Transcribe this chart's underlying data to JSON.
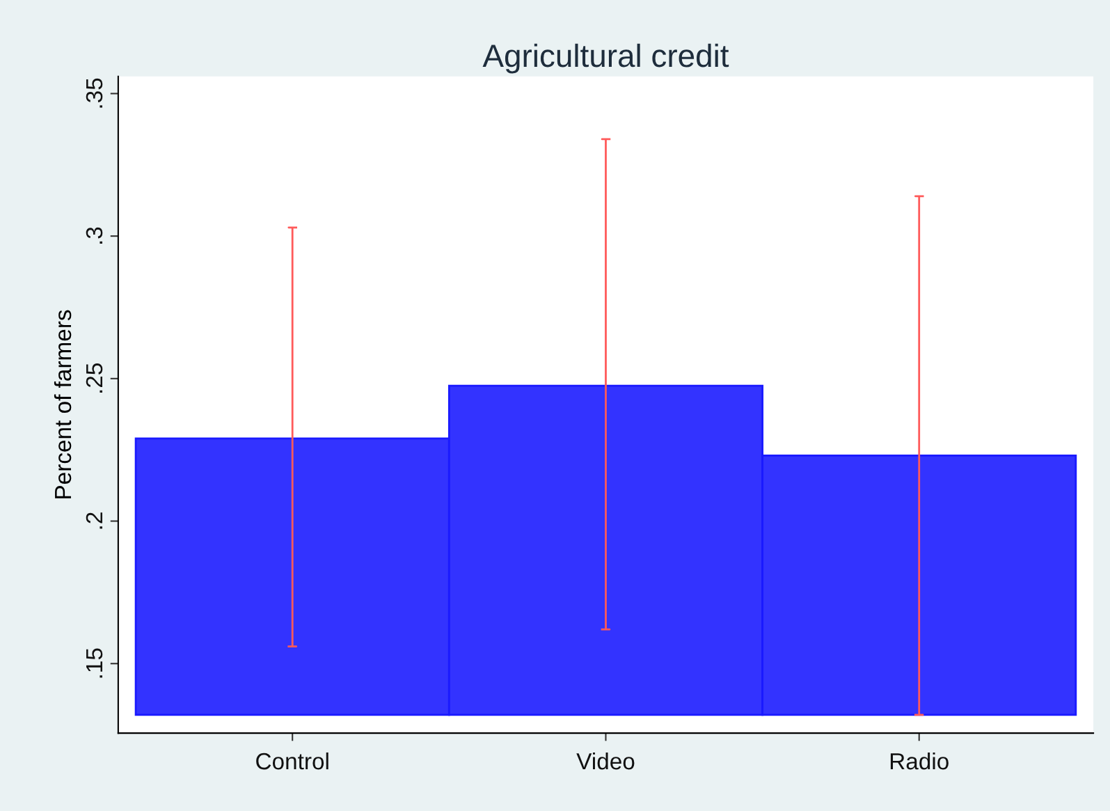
{
  "chart_data": {
    "type": "bar",
    "title": "Agricultural credit",
    "ylabel": "Percent of farmers",
    "categories": [
      "Control",
      "Video",
      "Radio"
    ],
    "values": [
      0.097,
      0.1155,
      0.091
    ],
    "base": [
      0.132,
      0.132,
      0.132
    ],
    "errors": [
      [
        0.156,
        0.303
      ],
      [
        0.162,
        0.334
      ],
      [
        0.132,
        0.314
      ]
    ],
    "color": "#3333ff",
    "ylim": [
      0.1256,
      0.356
    ],
    "yticks": [
      {
        "value": 0.15,
        "label": ".15"
      },
      {
        "value": 0.2,
        "label": ".2"
      },
      {
        "value": 0.25,
        "label": ".25"
      },
      {
        "value": 0.3,
        "label": ".3"
      },
      {
        "value": 0.35,
        "label": ".35"
      }
    ],
    "grid": false,
    "legend": false
  }
}
